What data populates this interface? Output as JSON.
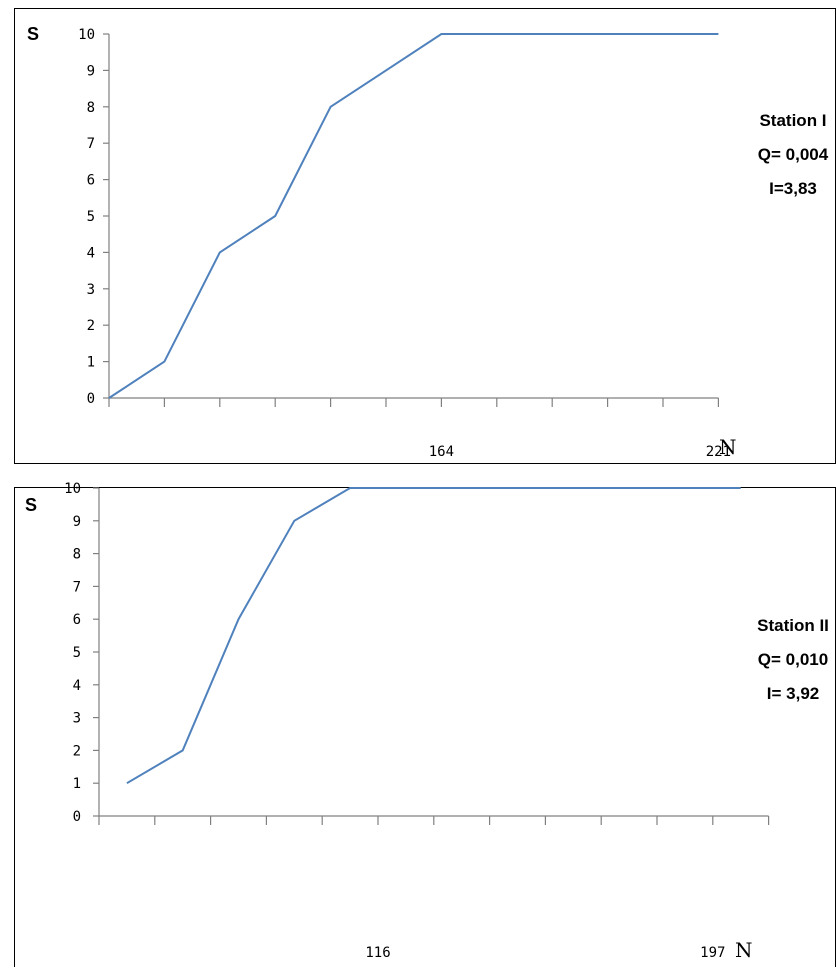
{
  "chart_data": [
    {
      "type": "line",
      "ylabel": "S",
      "xlabel": "N",
      "ylim": [
        0,
        10
      ],
      "yticks": [
        0,
        1,
        2,
        3,
        4,
        5,
        6,
        7,
        8,
        9,
        10
      ],
      "x_tick_count": 11,
      "x_tick_labels": [
        {
          "index": 6,
          "label": "164"
        },
        {
          "index": 11,
          "label": "221"
        }
      ],
      "series": [
        {
          "color": "#4f81bd",
          "points": [
            [
              0,
              0
            ],
            [
              1,
              1
            ],
            [
              2,
              4
            ],
            [
              3,
              5
            ],
            [
              4,
              8
            ],
            [
              5,
              9
            ],
            [
              6,
              10
            ],
            [
              7,
              10
            ],
            [
              8,
              10
            ],
            [
              9,
              10
            ],
            [
              10,
              10
            ],
            [
              11,
              10
            ]
          ]
        }
      ],
      "annotations": [
        "Station I",
        "Q= 0,004",
        "I=3,83"
      ]
    },
    {
      "type": "line",
      "ylabel": "S",
      "xlabel": "N",
      "ylim": [
        0,
        10
      ],
      "yticks": [
        0,
        1,
        2,
        3,
        4,
        5,
        6,
        7,
        8,
        9,
        10
      ],
      "x_tick_count": 12,
      "x_tick_labels": [
        {
          "index": 5,
          "label": "116"
        },
        {
          "index": 11,
          "label": "197"
        }
      ],
      "series": [
        {
          "color": "#4f81bd",
          "points": [
            [
              0.5,
              1
            ],
            [
              1.5,
              2
            ],
            [
              2.5,
              6
            ],
            [
              3.5,
              9
            ],
            [
              4.5,
              10
            ],
            [
              5.5,
              10
            ],
            [
              6.5,
              10
            ],
            [
              7.5,
              10
            ],
            [
              8.5,
              10
            ],
            [
              9.5,
              10
            ],
            [
              10.5,
              10
            ],
            [
              11.5,
              10
            ]
          ]
        }
      ],
      "annotations": [
        "Station II",
        "Q= 0,010",
        "I= 3,92"
      ]
    }
  ]
}
